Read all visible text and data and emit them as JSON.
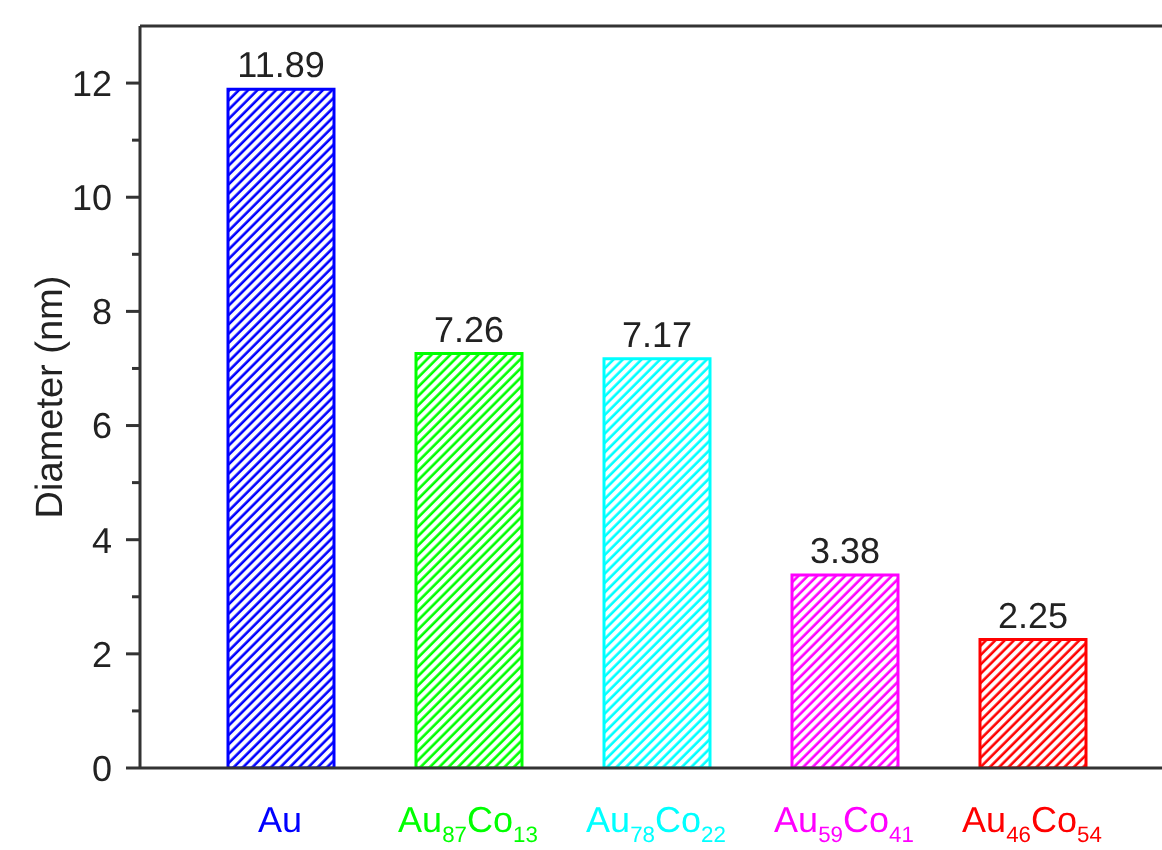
{
  "chart_data": {
    "type": "bar",
    "ylabel": "Diameter (nm)",
    "categories": [
      "Au",
      "Au$_{87}$Co$_{13}$",
      "Au$_{78}$Co$_{22}$",
      "Au$_{59}$Co$_{41}$",
      "Au$_{46}$Co$_{54}$"
    ],
    "values": [
      11.89,
      7.26,
      7.17,
      3.38,
      2.25
    ],
    "colors": [
      "#0000ff",
      "#00ff00",
      "#00ffff",
      "#ff00ff",
      "#ff0000"
    ],
    "ylim": [
      0,
      13
    ],
    "yticks": [
      0,
      {
        "value": 1,
        "label": null
      },
      2,
      {
        "value": 3,
        "label": null
      },
      4,
      {
        "value": 5,
        "label": null
      },
      6,
      {
        "value": 7,
        "label": null
      },
      8,
      {
        "value": 9,
        "label": null
      },
      10,
      {
        "value": 11,
        "label": null
      },
      12
    ],
    "data_labels": true
  }
}
